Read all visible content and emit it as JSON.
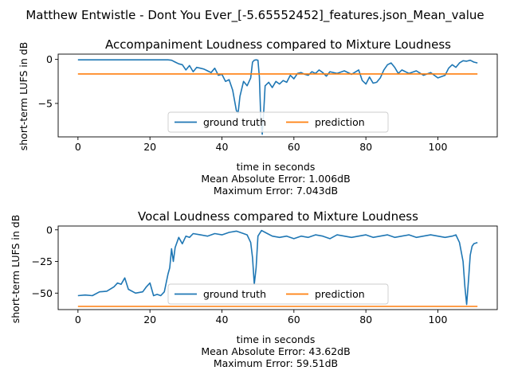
{
  "figure": {
    "suptitle": "Matthew Entwistle - Dont You Ever_[-5.65552452]_features.json_Mean_value"
  },
  "chart_data": [
    {
      "type": "line",
      "title": "Accompaniment Loudness compared to Mixture Loudness",
      "xlabel": "time in seconds",
      "ylabel": "short-term LUFS in dB",
      "xlim": [
        -5.5,
        116.5
      ],
      "ylim": [
        -8.8,
        0.6
      ],
      "xticks": [
        0,
        20,
        40,
        60,
        80,
        100
      ],
      "yticks": [
        0,
        -5
      ],
      "legend": {
        "location": "lower center",
        "columns": 2
      },
      "footer": [
        "Mean Absolute Error: 1.006dB",
        "Maximum Error: 7.043dB"
      ],
      "series": [
        {
          "name": "ground truth",
          "color": "#1f77b4",
          "x": [
            0,
            5,
            10,
            15,
            20,
            25,
            26,
            27,
            28,
            29,
            30,
            31,
            32,
            33,
            34,
            35,
            36,
            37,
            38,
            39,
            40,
            41,
            42,
            43,
            44,
            44.5,
            45,
            46,
            47,
            48,
            48.5,
            49,
            49.5,
            50,
            50.4,
            50.8,
            51.2,
            51.6,
            52,
            53,
            54,
            55,
            56,
            57,
            58,
            59,
            60,
            61,
            62,
            63,
            64,
            65,
            66,
            67,
            68,
            69,
            70,
            72,
            74,
            76,
            78,
            79,
            80,
            81,
            82,
            83,
            84,
            85,
            86,
            87,
            88,
            89,
            90,
            92,
            94,
            96,
            98,
            100,
            102,
            103,
            104,
            105,
            106,
            107,
            108,
            109,
            110,
            111
          ],
          "y": [
            -0.05,
            -0.05,
            -0.05,
            -0.05,
            -0.05,
            -0.05,
            -0.1,
            -0.3,
            -0.5,
            -0.6,
            -1.2,
            -0.7,
            -1.4,
            -0.9,
            -1.0,
            -1.1,
            -1.3,
            -1.5,
            -1.0,
            -1.8,
            -1.7,
            -2.5,
            -2.3,
            -3.5,
            -5.8,
            -6.1,
            -4.2,
            -2.5,
            -3.0,
            -2.1,
            -0.3,
            -0.1,
            -0.05,
            -0.1,
            -2.0,
            -6.8,
            -8.5,
            -6.0,
            -3.0,
            -2.6,
            -3.2,
            -2.5,
            -2.8,
            -2.4,
            -2.6,
            -1.8,
            -2.2,
            -1.6,
            -1.5,
            -1.7,
            -1.8,
            -1.4,
            -1.6,
            -1.2,
            -1.5,
            -1.9,
            -1.4,
            -1.6,
            -1.3,
            -1.7,
            -1.2,
            -2.4,
            -2.8,
            -2.0,
            -2.7,
            -2.6,
            -2.1,
            -1.2,
            -0.6,
            -0.4,
            -0.9,
            -1.6,
            -1.2,
            -1.6,
            -1.3,
            -1.8,
            -1.5,
            -2.1,
            -1.8,
            -1.0,
            -0.6,
            -0.9,
            -0.4,
            -0.15,
            -0.2,
            -0.1,
            -0.3,
            -0.4
          ]
        },
        {
          "name": "prediction",
          "color": "#ff7f0e",
          "x": [
            0,
            111
          ],
          "y": [
            -1.65,
            -1.65
          ]
        }
      ]
    },
    {
      "type": "line",
      "title": "Vocal Loudness compared to Mixture Loudness",
      "xlabel": "time in seconds",
      "ylabel": "short-term LUFS in dB",
      "xlim": [
        -5.5,
        116.5
      ],
      "ylim": [
        -63,
        3
      ],
      "xticks": [
        0,
        20,
        40,
        60,
        80,
        100
      ],
      "yticks": [
        0,
        -25,
        -50
      ],
      "legend": {
        "location": "lower center",
        "columns": 2
      },
      "footer": [
        "Mean Absolute Error: 43.62dB",
        "Maximum Error: 59.51dB"
      ],
      "series": [
        {
          "name": "ground truth",
          "color": "#1f77b4",
          "x": [
            0,
            2,
            4,
            6,
            8,
            10,
            11,
            12,
            13,
            14,
            16,
            18,
            19,
            20,
            21,
            22,
            23,
            24,
            25,
            25.5,
            26,
            26.5,
            27,
            28,
            29,
            30,
            31,
            32,
            34,
            36,
            38,
            40,
            42,
            44,
            46,
            47,
            48,
            48.5,
            49,
            49.5,
            50,
            51,
            52,
            54,
            56,
            58,
            60,
            62,
            64,
            66,
            68,
            70,
            72,
            74,
            76,
            78,
            80,
            82,
            84,
            86,
            88,
            90,
            92,
            94,
            96,
            98,
            100,
            102,
            104,
            105,
            106,
            107,
            107.5,
            108,
            108.5,
            109,
            109.5,
            110,
            111
          ],
          "y": [
            -52,
            -51.5,
            -52,
            -49,
            -48.5,
            -45,
            -42,
            -43,
            -38,
            -47,
            -50,
            -49,
            -45,
            -42,
            -52,
            -51,
            -52,
            -49,
            -35,
            -30,
            -15,
            -25,
            -14,
            -6,
            -11,
            -5,
            -6,
            -3,
            -4,
            -5,
            -3,
            -4,
            -2,
            -1,
            -3,
            -4,
            -10,
            -22,
            -43,
            -30,
            -5,
            -0.5,
            -2,
            -5,
            -6,
            -5,
            -7,
            -5,
            -6,
            -4,
            -5,
            -7,
            -4,
            -5,
            -6,
            -5,
            -4,
            -6,
            -5,
            -4,
            -6,
            -5,
            -4,
            -6,
            -5,
            -4,
            -5,
            -6,
            -5,
            -4,
            -10,
            -25,
            -45,
            -59,
            -40,
            -20,
            -13,
            -11,
            -10
          ]
        },
        {
          "name": "prediction",
          "color": "#ff7f0e",
          "x": [
            0,
            111
          ],
          "y": [
            -60.5,
            -60.5
          ]
        }
      ]
    }
  ]
}
